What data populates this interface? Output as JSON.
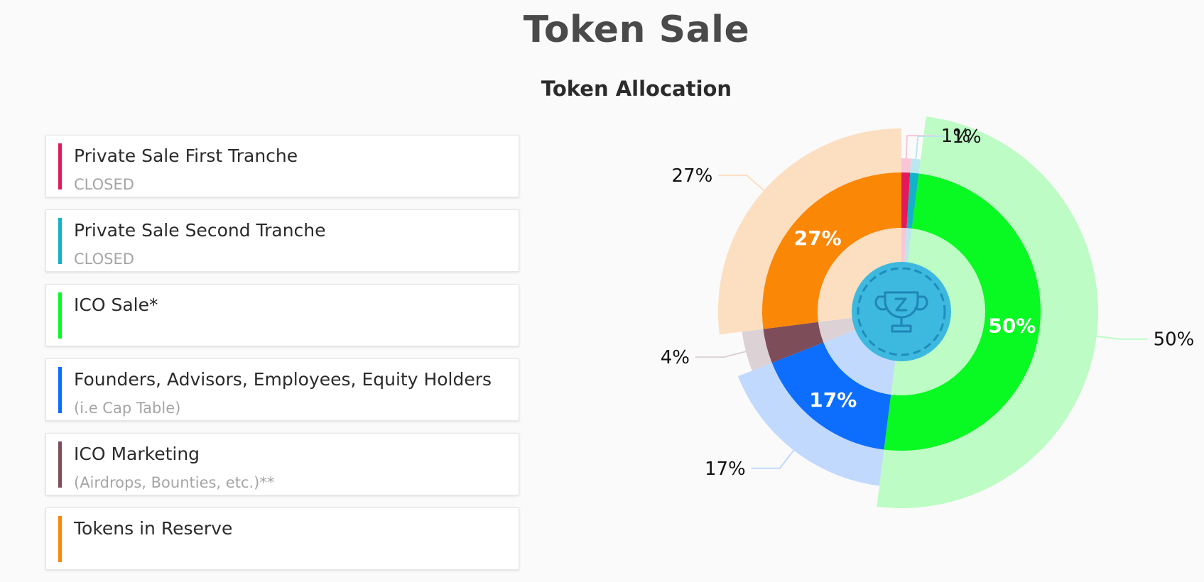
{
  "page_title": "Token Sale",
  "legend": [
    {
      "title": "Private Sale First Tranche",
      "subtitle": "CLOSED",
      "color": "#e21a5c"
    },
    {
      "title": "Private Sale Second Tranche",
      "subtitle": "CLOSED",
      "color": "#12b2c9"
    },
    {
      "title": "ICO Sale*",
      "subtitle": "",
      "color": "#09f922"
    },
    {
      "title": "Founders, Advisors, Employees, Equity Holders",
      "subtitle": "(i.e Cap Table)",
      "color": "#0d6efd"
    },
    {
      "title": "ICO Marketing",
      "subtitle": "(Airdrops, Bounties, etc.)**",
      "color": "#7e4d5a"
    },
    {
      "title": "Tokens in Reserve",
      "subtitle": "",
      "color": "#fb8707"
    }
  ],
  "chart_data": {
    "type": "pie",
    "variant": "nested-donut",
    "title": "Token Allocation",
    "categories": [
      "Private Sale First Tranche",
      "Private Sale Second Tranche",
      "ICO Sale*",
      "Founders, Advisors, Employees, Equity Holders",
      "ICO Marketing",
      "Tokens in Reserve"
    ],
    "values": [
      1,
      1,
      50,
      17,
      4,
      27
    ],
    "inner_labels": [
      "",
      "",
      "50%",
      "17%",
      "",
      "27%"
    ],
    "outer_labels": [
      "1%",
      "1%",
      "50%",
      "17%",
      "4%",
      "27%"
    ],
    "colors": [
      "#e21a5c",
      "#12b2c9",
      "#09f922",
      "#0d6efd",
      "#7e4d5a",
      "#fb8707"
    ],
    "outer_colors": [
      "#f8c6d6",
      "#bce7ee",
      "#bdfcc4",
      "#c1d9fd",
      "#dcd1d4",
      "#fcdfc1"
    ],
    "center_icon": "trophy-icon"
  }
}
